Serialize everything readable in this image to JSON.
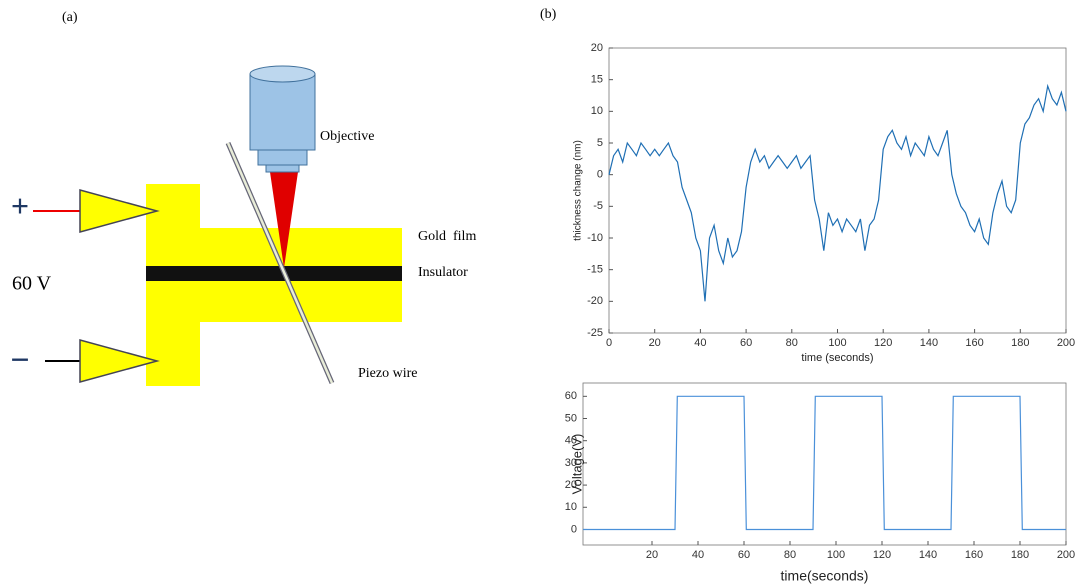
{
  "panels": {
    "a": "(a)",
    "b": "(b)"
  },
  "diagram": {
    "objective": "Objective",
    "gold_film": "Gold  film",
    "insulator": "Insulator",
    "piezo_wire": "Piezo wire",
    "voltage": "60 V",
    "plus": "+",
    "minus": "−"
  },
  "chart_data": [
    {
      "type": "line",
      "xlabel": "time (seconds)",
      "ylabel": "thickness change (nm)",
      "xlim": [
        0,
        200
      ],
      "ylim": [
        -25,
        20
      ],
      "xticks": [
        0,
        20,
        40,
        60,
        80,
        100,
        120,
        140,
        160,
        180,
        200
      ],
      "yticks": [
        -25,
        -20,
        -15,
        -10,
        -5,
        0,
        5,
        10,
        15,
        20
      ],
      "series": [
        {
          "color": "#1f6fb4",
          "x": [
            0,
            2,
            4,
            6,
            8,
            10,
            12,
            14,
            16,
            18,
            20,
            22,
            24,
            26,
            28,
            30,
            32,
            34,
            36,
            38,
            40,
            42,
            44,
            46,
            48,
            50,
            52,
            54,
            56,
            58,
            60,
            62,
            64,
            66,
            68,
            70,
            72,
            74,
            76,
            78,
            80,
            82,
            84,
            86,
            88,
            90,
            92,
            94,
            96,
            98,
            100,
            102,
            104,
            106,
            108,
            110,
            112,
            114,
            116,
            118,
            120,
            122,
            124,
            126,
            128,
            130,
            132,
            134,
            136,
            138,
            140,
            142,
            144,
            146,
            148,
            150,
            152,
            154,
            156,
            158,
            160,
            162,
            164,
            166,
            168,
            170,
            172,
            174,
            176,
            178,
            180,
            182,
            184,
            186,
            188,
            190,
            192,
            194,
            196,
            198,
            200
          ],
          "values": [
            0,
            3,
            4,
            2,
            5,
            4,
            3,
            5,
            4,
            3,
            4,
            3,
            4,
            5,
            3,
            2,
            -2,
            -4,
            -6,
            -10,
            -12,
            -20,
            -10,
            -8,
            -12,
            -14,
            -10,
            -13,
            -12,
            -9,
            -2,
            2,
            4,
            2,
            3,
            1,
            2,
            3,
            2,
            1,
            2,
            3,
            1,
            2,
            3,
            -4,
            -7,
            -12,
            -6,
            -8,
            -7,
            -9,
            -7,
            -8,
            -9,
            -7,
            -12,
            -8,
            -7,
            -4,
            4,
            6,
            7,
            5,
            4,
            6,
            3,
            5,
            4,
            3,
            6,
            4,
            3,
            5,
            7,
            0,
            -3,
            -5,
            -6,
            -8,
            -9,
            -7,
            -10,
            -11,
            -6,
            -3,
            -1,
            -5,
            -6,
            -4,
            5,
            8,
            9,
            11,
            12,
            10,
            14,
            12,
            11,
            13,
            10
          ]
        }
      ]
    },
    {
      "type": "line",
      "xlabel": "time(seconds)",
      "ylabel": "Voltage(V)",
      "xlim": [
        -10,
        200
      ],
      "ylim": [
        -7,
        66
      ],
      "xticks": [
        20,
        40,
        60,
        80,
        100,
        120,
        140,
        160,
        180,
        200
      ],
      "yticks": [
        0,
        10,
        20,
        30,
        40,
        50,
        60
      ],
      "series": [
        {
          "color": "#4a90d9",
          "x": [
            -10,
            30,
            31,
            60,
            61,
            90,
            91,
            120,
            121,
            150,
            151,
            180,
            181,
            200
          ],
          "values": [
            0,
            0,
            60,
            60,
            0,
            0,
            60,
            60,
            0,
            0,
            60,
            60,
            0,
            0
          ]
        }
      ]
    }
  ]
}
